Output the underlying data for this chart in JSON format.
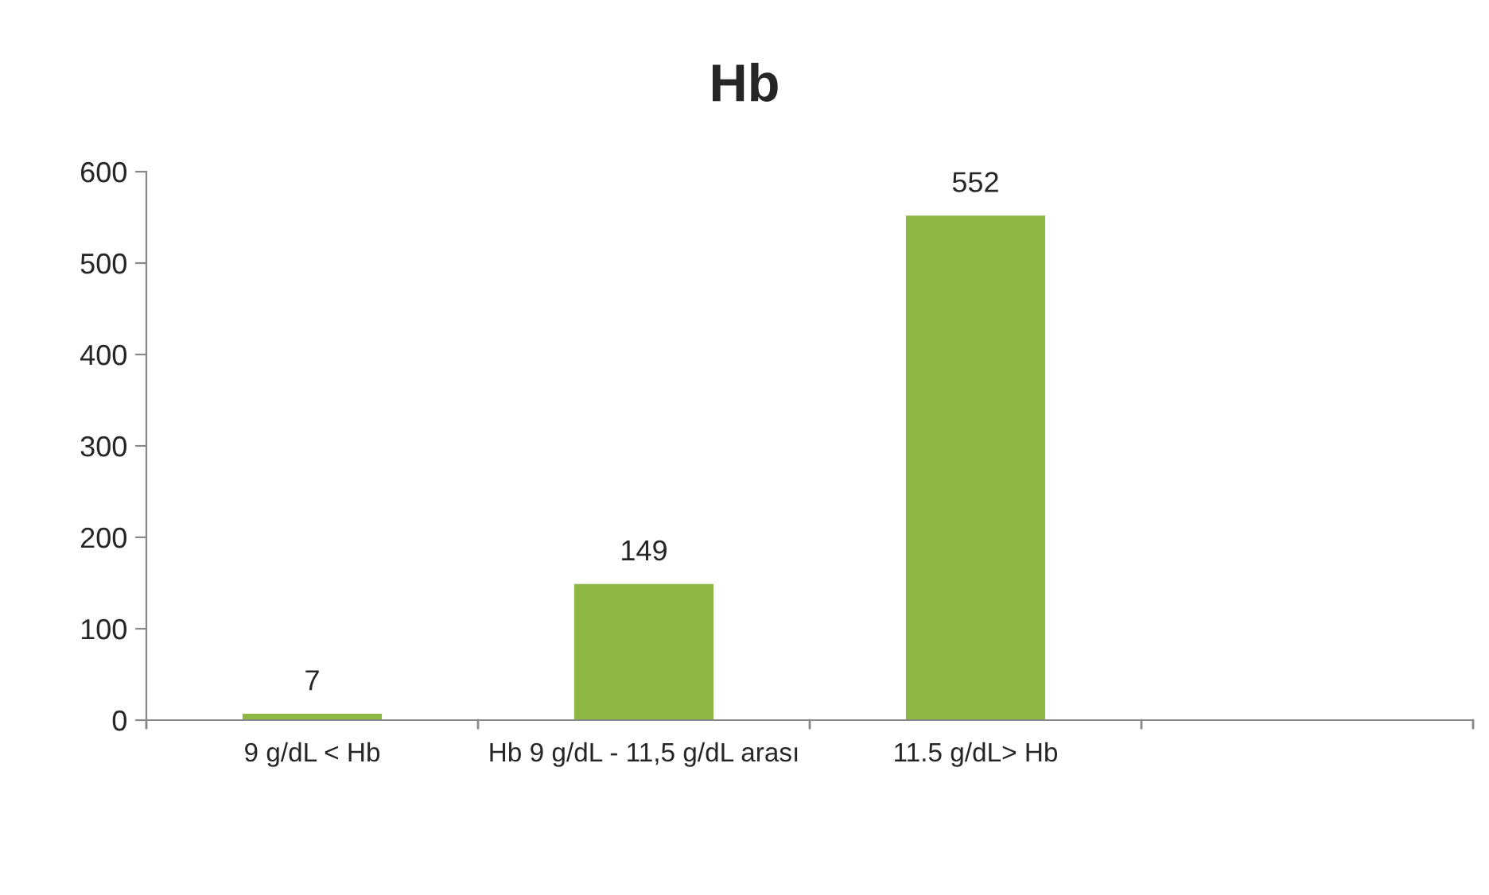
{
  "chart_data": {
    "type": "bar",
    "title": "Hb",
    "categories": [
      "9 g/dL < Hb",
      "Hb 9 g/dL - 11,5 g/dL arası",
      "11.5 g/dL> Hb",
      null
    ],
    "series": [
      {
        "color": "#8db843",
        "values": [
          7,
          149,
          552,
          null
        ]
      }
    ],
    "ylim": [
      0,
      600
    ],
    "yticks": [
      0,
      100,
      200,
      300,
      400,
      500,
      600
    ],
    "data_labels": true
  }
}
